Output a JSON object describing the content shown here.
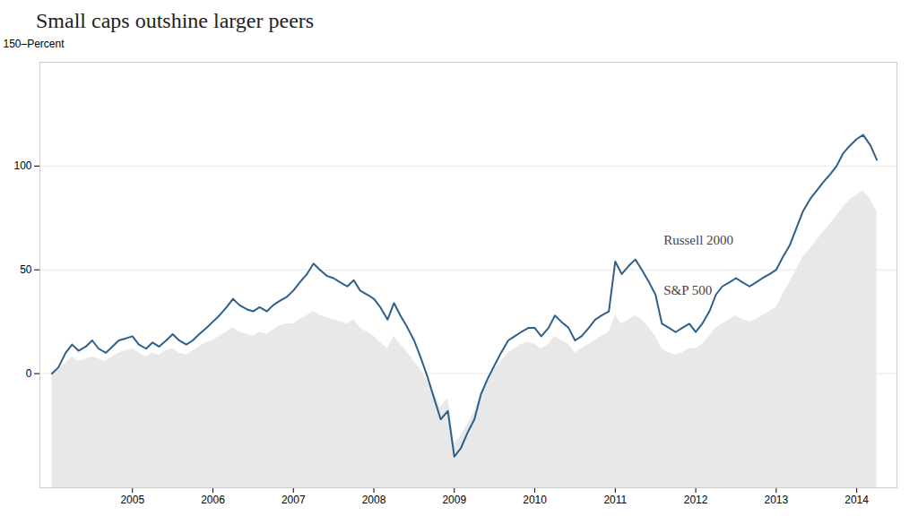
{
  "chart_data": {
    "type": "line",
    "title": "Small caps outshine larger peers",
    "x": [
      2004.0,
      2004.08,
      2004.17,
      2004.25,
      2004.33,
      2004.42,
      2004.5,
      2004.58,
      2004.67,
      2004.75,
      2004.83,
      2004.92,
      2005.0,
      2005.08,
      2005.17,
      2005.25,
      2005.33,
      2005.42,
      2005.5,
      2005.58,
      2005.67,
      2005.75,
      2005.83,
      2005.92,
      2006.0,
      2006.08,
      2006.17,
      2006.25,
      2006.33,
      2006.42,
      2006.5,
      2006.58,
      2006.67,
      2006.75,
      2006.83,
      2006.92,
      2007.0,
      2007.08,
      2007.17,
      2007.25,
      2007.33,
      2007.42,
      2007.5,
      2007.58,
      2007.67,
      2007.75,
      2007.83,
      2007.92,
      2008.0,
      2008.08,
      2008.17,
      2008.25,
      2008.33,
      2008.42,
      2008.5,
      2008.58,
      2008.67,
      2008.75,
      2008.83,
      2008.92,
      2009.0,
      2009.08,
      2009.17,
      2009.25,
      2009.33,
      2009.42,
      2009.5,
      2009.58,
      2009.67,
      2009.75,
      2009.83,
      2009.92,
      2010.0,
      2010.08,
      2010.17,
      2010.25,
      2010.33,
      2010.42,
      2010.5,
      2010.58,
      2010.67,
      2010.75,
      2010.83,
      2010.92,
      2011.0,
      2011.08,
      2011.17,
      2011.25,
      2011.33,
      2011.42,
      2011.5,
      2011.58,
      2011.67,
      2011.75,
      2011.83,
      2011.92,
      2012.0,
      2012.08,
      2012.17,
      2012.25,
      2012.33,
      2012.42,
      2012.5,
      2012.58,
      2012.67,
      2012.75,
      2012.83,
      2012.92,
      2013.0,
      2013.08,
      2013.17,
      2013.25,
      2013.33,
      2013.42,
      2013.5,
      2013.58,
      2013.67,
      2013.75,
      2013.83,
      2013.92,
      2014.0,
      2014.08,
      2014.17,
      2014.25
    ],
    "series": [
      {
        "name": "S&P 500",
        "type": "area",
        "color": "#e8e8e8",
        "values": [
          0,
          2,
          5,
          8,
          6,
          7,
          8,
          7,
          6,
          8,
          10,
          11,
          12,
          10,
          8,
          10,
          9,
          11,
          12,
          10,
          9,
          11,
          13,
          15,
          16,
          18,
          20,
          22,
          20,
          19,
          18,
          20,
          19,
          21,
          23,
          24,
          24,
          26,
          28,
          30,
          28,
          27,
          26,
          25,
          24,
          26,
          22,
          20,
          18,
          15,
          12,
          18,
          14,
          10,
          6,
          2,
          -4,
          -10,
          -16,
          -12,
          -34,
          -30,
          -24,
          -18,
          -10,
          -4,
          2,
          6,
          10,
          12,
          14,
          15,
          14,
          12,
          14,
          18,
          16,
          14,
          10,
          12,
          14,
          16,
          18,
          20,
          28,
          24,
          26,
          28,
          26,
          22,
          18,
          12,
          10,
          9,
          10,
          12,
          12,
          14,
          18,
          22,
          24,
          26,
          28,
          26,
          25,
          26,
          28,
          30,
          32,
          38,
          44,
          50,
          56,
          60,
          64,
          68,
          72,
          76,
          80,
          84,
          86,
          88,
          84,
          78
        ]
      },
      {
        "name": "Russell 2000",
        "type": "line",
        "color": "#2e5f8a",
        "values": [
          0,
          3,
          10,
          14,
          11,
          13,
          16,
          12,
          10,
          13,
          16,
          17,
          18,
          14,
          12,
          15,
          13,
          16,
          19,
          16,
          14,
          16,
          19,
          22,
          25,
          28,
          32,
          36,
          33,
          31,
          30,
          32,
          30,
          33,
          35,
          37,
          40,
          44,
          48,
          53,
          50,
          47,
          46,
          44,
          42,
          45,
          40,
          38,
          36,
          32,
          26,
          34,
          28,
          22,
          16,
          8,
          -2,
          -12,
          -22,
          -18,
          -40,
          -36,
          -28,
          -22,
          -10,
          -2,
          4,
          10,
          16,
          18,
          20,
          22,
          22,
          18,
          22,
          28,
          25,
          22,
          16,
          18,
          22,
          26,
          28,
          30,
          54,
          48,
          52,
          55,
          50,
          44,
          38,
          24,
          22,
          20,
          22,
          24,
          20,
          24,
          30,
          38,
          42,
          44,
          46,
          44,
          42,
          44,
          46,
          48,
          50,
          56,
          62,
          70,
          78,
          84,
          88,
          92,
          96,
          100,
          106,
          110,
          113,
          115,
          110,
          103
        ]
      }
    ],
    "xlim": [
      2003.85,
      2014.5
    ],
    "xticks": [
      2005,
      2006,
      2007,
      2008,
      2009,
      2010,
      2011,
      2012,
      2013,
      2014
    ],
    "ylim": [
      -55,
      150
    ],
    "yticks": [
      0,
      50,
      100
    ],
    "ylabel": "150–Percent",
    "grid": true,
    "annotations": [
      {
        "x": 2011.6,
        "y": 62,
        "text": "Russell 2000"
      },
      {
        "x": 2011.6,
        "y": 38,
        "text": "S&P 500"
      }
    ]
  }
}
